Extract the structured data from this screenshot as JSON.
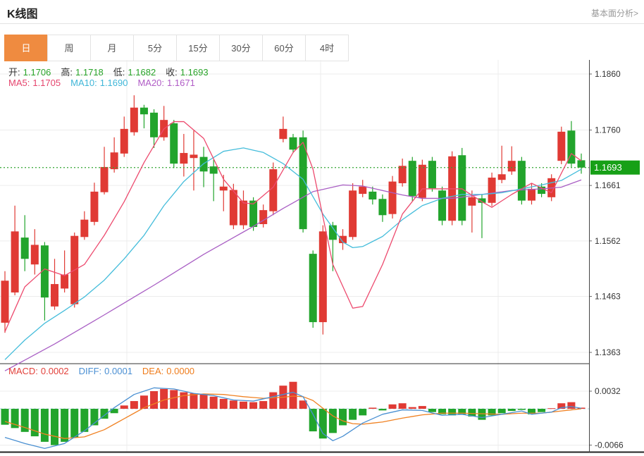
{
  "header": {
    "title": "K线图",
    "link": "基本面分析>"
  },
  "tabs": {
    "items": [
      "日",
      "周",
      "月",
      "5分",
      "15分",
      "30分",
      "60分",
      "4时"
    ],
    "active_index": 0
  },
  "ohlc": {
    "o_label": "开:",
    "o": "1.1706",
    "h_label": "高:",
    "h": "1.1718",
    "l_label": "低:",
    "l": "1.1682",
    "c_label": "收:",
    "c": "1.1693"
  },
  "ma_legend": {
    "ma5_label": "MA5:",
    "ma5": "1.1705",
    "ma10_label": "MA10:",
    "ma10": "1.1690",
    "ma20_label": "MA20:",
    "ma20": "1.1671"
  },
  "macd_legend": {
    "macd_label": "MACD:",
    "macd": "0.0002",
    "diff_label": "DIFF:",
    "diff": "0.0001",
    "dea_label": "DEA:",
    "dea": "0.0000"
  },
  "colors": {
    "up_candle": "#e03a34",
    "down_candle": "#22a42c",
    "ma5_line": "#ed4a6e",
    "ma10_line": "#45bddb",
    "ma20_line": "#a95fc4",
    "diff_line": "#4a90d2",
    "dea_line": "#f08223",
    "current_price_tag": "#17a017",
    "current_price_line": "#33a532",
    "active_tab": "#ef8b40",
    "grid": "#ececec",
    "axis": "#444444",
    "zero_dash": "#aad4e6"
  },
  "chart_data": {
    "type": "candlestick+macd",
    "title": "K线图",
    "period": "日",
    "price_axis": {
      "max": 1.186,
      "min": 1.1363,
      "ticks": [
        1.186,
        1.176,
        1.1661,
        1.1562,
        1.1463,
        1.1363
      ],
      "current_price": 1.1693
    },
    "macd_axis": {
      "ticks": [
        0.0032,
        -0.0066
      ],
      "zero": 0
    },
    "ohlc_order": "open,close,high,low",
    "candles": [
      [
        1.1416,
        1.1491,
        1.1508,
        1.1398
      ],
      [
        1.147,
        1.1579,
        1.1625,
        1.1465
      ],
      [
        1.1568,
        1.153,
        1.1608,
        1.1508
      ],
      [
        1.152,
        1.1555,
        1.1583,
        1.1502
      ],
      [
        1.1554,
        1.1461,
        1.156,
        1.142
      ],
      [
        1.1445,
        1.1485,
        1.153,
        1.1439
      ],
      [
        1.1477,
        1.1502,
        1.1545,
        1.147
      ],
      [
        1.1449,
        1.1571,
        1.1577,
        1.1443
      ],
      [
        1.1569,
        1.16,
        1.1615,
        1.1564
      ],
      [
        1.1596,
        1.165,
        1.1666,
        1.159
      ],
      [
        1.1649,
        1.1694,
        1.173,
        1.1645
      ],
      [
        1.169,
        1.172,
        1.1747,
        1.1684
      ],
      [
        1.1718,
        1.1762,
        1.1784,
        1.1712
      ],
      [
        1.1756,
        1.18,
        1.1822,
        1.175
      ],
      [
        1.18,
        1.1788,
        1.1805,
        1.1763
      ],
      [
        1.1791,
        1.1747,
        1.1797,
        1.1728
      ],
      [
        1.1747,
        1.1778,
        1.1803,
        1.1741
      ],
      [
        1.1772,
        1.17,
        1.1778,
        1.1692
      ],
      [
        1.17,
        1.1719,
        1.1753,
        1.1677
      ],
      [
        1.171,
        1.1716,
        1.1759,
        1.1652
      ],
      [
        1.1712,
        1.1686,
        1.173,
        1.1658
      ],
      [
        1.1695,
        1.1682,
        1.1707,
        1.1633
      ],
      [
        1.1652,
        1.1659,
        1.168,
        1.1615
      ],
      [
        1.159,
        1.1653,
        1.1664,
        1.1583
      ],
      [
        1.159,
        1.1634,
        1.1652,
        1.1583
      ],
      [
        1.1634,
        1.1587,
        1.164,
        1.158
      ],
      [
        1.1592,
        1.1617,
        1.1627,
        1.1586
      ],
      [
        1.1615,
        1.169,
        1.1702,
        1.1608
      ],
      [
        1.1744,
        1.1762,
        1.1784,
        1.1738
      ],
      [
        1.1747,
        1.1725,
        1.1753,
        1.1719
      ],
      [
        1.1747,
        1.1583,
        1.1759,
        1.1577
      ],
      [
        1.1539,
        1.1417,
        1.1545,
        1.1407
      ],
      [
        1.1417,
        1.1579,
        1.159,
        1.1395
      ],
      [
        1.159,
        1.1564,
        1.1596,
        1.1508
      ],
      [
        1.1558,
        1.1571,
        1.1583,
        1.1546
      ],
      [
        1.1569,
        1.1652,
        1.1665,
        1.1564
      ],
      [
        1.1646,
        1.1659,
        1.1671,
        1.164
      ],
      [
        1.165,
        1.1636,
        1.1659,
        1.1627
      ],
      [
        1.1637,
        1.1608,
        1.1645,
        1.1596
      ],
      [
        1.161,
        1.1668,
        1.1678,
        1.1602
      ],
      [
        1.1665,
        1.1696,
        1.1709,
        1.1659
      ],
      [
        1.1705,
        1.1642,
        1.1712,
        1.1633
      ],
      [
        1.1639,
        1.1698,
        1.1707,
        1.1633
      ],
      [
        1.1705,
        1.1656,
        1.1712,
        1.165
      ],
      [
        1.1652,
        1.1598,
        1.1659,
        1.159
      ],
      [
        1.1598,
        1.1713,
        1.1722,
        1.159
      ],
      [
        1.1715,
        1.1598,
        1.1728,
        1.159
      ],
      [
        1.1625,
        1.164,
        1.1652,
        1.1577
      ],
      [
        1.1638,
        1.163,
        1.1645,
        1.1567
      ],
      [
        1.163,
        1.1675,
        1.1684,
        1.1624
      ],
      [
        1.1671,
        1.1681,
        1.1732,
        1.1665
      ],
      [
        1.1686,
        1.1705,
        1.1731,
        1.168
      ],
      [
        1.1705,
        1.1634,
        1.1712,
        1.1627
      ],
      [
        1.1634,
        1.1655,
        1.1665,
        1.1627
      ],
      [
        1.1659,
        1.1646,
        1.1665,
        1.164
      ],
      [
        1.164,
        1.1674,
        1.1681,
        1.1633
      ],
      [
        1.1705,
        1.1757,
        1.1766,
        1.1699
      ],
      [
        1.1759,
        1.17,
        1.1776,
        1.1694
      ],
      [
        1.1706,
        1.1693,
        1.1718,
        1.1682
      ]
    ],
    "ma5_keypoints": [
      [
        0,
        1.14
      ],
      [
        2,
        1.148
      ],
      [
        4,
        1.1512
      ],
      [
        6,
        1.15
      ],
      [
        8,
        1.152
      ],
      [
        10,
        1.1572
      ],
      [
        12,
        1.1632
      ],
      [
        14,
        1.1702
      ],
      [
        16,
        1.1762
      ],
      [
        17,
        1.1775
      ],
      [
        18,
        1.1775
      ],
      [
        20,
        1.1745
      ],
      [
        22,
        1.1672
      ],
      [
        24,
        1.163
      ],
      [
        25,
        1.1628
      ],
      [
        27,
        1.1658
      ],
      [
        29,
        1.172
      ],
      [
        30,
        1.1738
      ],
      [
        31,
        1.169
      ],
      [
        33,
        1.152
      ],
      [
        35,
        1.1442
      ],
      [
        36,
        1.1445
      ],
      [
        38,
        1.152
      ],
      [
        40,
        1.161
      ],
      [
        42,
        1.1655
      ],
      [
        44,
        1.1655
      ],
      [
        46,
        1.1655
      ],
      [
        48,
        1.1632
      ],
      [
        49,
        1.1622
      ],
      [
        51,
        1.1645
      ],
      [
        53,
        1.1665
      ],
      [
        55,
        1.1648
      ],
      [
        57,
        1.1718
      ],
      [
        58,
        1.1705
      ]
    ],
    "ma10_keypoints": [
      [
        0,
        1.135
      ],
      [
        2,
        1.1385
      ],
      [
        4,
        1.1415
      ],
      [
        6,
        1.1438
      ],
      [
        8,
        1.1462
      ],
      [
        10,
        1.1492
      ],
      [
        12,
        1.153
      ],
      [
        14,
        1.1572
      ],
      [
        16,
        1.1625
      ],
      [
        18,
        1.1668
      ],
      [
        20,
        1.17
      ],
      [
        22,
        1.1722
      ],
      [
        24,
        1.1728
      ],
      [
        26,
        1.172
      ],
      [
        28,
        1.17
      ],
      [
        30,
        1.1672
      ],
      [
        32,
        1.161
      ],
      [
        34,
        1.156
      ],
      [
        35,
        1.155
      ],
      [
        36,
        1.1552
      ],
      [
        38,
        1.157
      ],
      [
        40,
        1.16
      ],
      [
        42,
        1.1625
      ],
      [
        44,
        1.1638
      ],
      [
        46,
        1.1645
      ],
      [
        48,
        1.1645
      ],
      [
        50,
        1.1648
      ],
      [
        52,
        1.1655
      ],
      [
        54,
        1.1662
      ],
      [
        56,
        1.167
      ],
      [
        58,
        1.169
      ]
    ],
    "ma20_keypoints": [
      [
        0,
        1.133
      ],
      [
        5,
        1.1378
      ],
      [
        10,
        1.143
      ],
      [
        15,
        1.1483
      ],
      [
        20,
        1.1538
      ],
      [
        25,
        1.1588
      ],
      [
        28,
        1.162
      ],
      [
        31,
        1.165
      ],
      [
        34,
        1.1662
      ],
      [
        36,
        1.166
      ],
      [
        38,
        1.1652
      ],
      [
        40,
        1.1644
      ],
      [
        42,
        1.1638
      ],
      [
        45,
        1.1638
      ],
      [
        48,
        1.1645
      ],
      [
        51,
        1.1652
      ],
      [
        54,
        1.1655
      ],
      [
        56,
        1.1658
      ],
      [
        58,
        1.1671
      ]
    ],
    "macd_hist": [
      -0.0029,
      -0.0035,
      -0.0042,
      -0.005,
      -0.006,
      -0.0066,
      -0.006,
      -0.0052,
      -0.0042,
      -0.003,
      -0.0018,
      -0.0008,
      0.0006,
      0.0014,
      0.0024,
      0.0032,
      0.0036,
      0.0034,
      0.003,
      0.0028,
      0.0026,
      0.0022,
      0.0018,
      0.0015,
      0.0013,
      0.0012,
      0.0014,
      0.003,
      0.0042,
      0.0049,
      0.0015,
      -0.0041,
      -0.0054,
      -0.0044,
      -0.003,
      -0.002,
      -0.0012,
      0.0002,
      -0.0003,
      0.0008,
      0.001,
      0.0003,
      0.0005,
      -0.0006,
      -0.001,
      -0.0012,
      -0.001,
      -0.0014,
      -0.002,
      -0.0012,
      -0.0008,
      -0.0004,
      -0.0002,
      -0.001,
      -0.0006,
      0.0001,
      0.001,
      0.0012,
      0.0002
    ],
    "diff_keypoints": [
      [
        0,
        -0.0052
      ],
      [
        2,
        -0.0063
      ],
      [
        4,
        -0.0072
      ],
      [
        6,
        -0.0063
      ],
      [
        8,
        -0.004
      ],
      [
        10,
        -0.0012
      ],
      [
        11,
        0.0002
      ],
      [
        13,
        0.0026
      ],
      [
        15,
        0.0038
      ],
      [
        17,
        0.0036
      ],
      [
        19,
        0.0028
      ],
      [
        21,
        0.0024
      ],
      [
        23,
        0.0016
      ],
      [
        25,
        0.0014
      ],
      [
        27,
        0.0022
      ],
      [
        29,
        0.003
      ],
      [
        30,
        0.0022
      ],
      [
        31,
        -0.001
      ],
      [
        32,
        -0.0045
      ],
      [
        33,
        -0.0058
      ],
      [
        34,
        -0.005
      ],
      [
        36,
        -0.0026
      ],
      [
        38,
        -0.001
      ],
      [
        40,
        -0.0002
      ],
      [
        42,
        -0.0003
      ],
      [
        44,
        -0.0012
      ],
      [
        46,
        -0.001
      ],
      [
        48,
        -0.0016
      ],
      [
        50,
        -0.001
      ],
      [
        52,
        -0.0004
      ],
      [
        53,
        -0.001
      ],
      [
        55,
        -0.0006
      ],
      [
        56,
        0.0002
      ],
      [
        57,
        0.0004
      ],
      [
        58,
        0.0001
      ]
    ],
    "dea_keypoints": [
      [
        0,
        -0.0023
      ],
      [
        2,
        -0.0034
      ],
      [
        4,
        -0.0046
      ],
      [
        6,
        -0.0054
      ],
      [
        8,
        -0.0051
      ],
      [
        10,
        -0.0038
      ],
      [
        12,
        -0.0018
      ],
      [
        14,
        0.0002
      ],
      [
        16,
        0.0016
      ],
      [
        18,
        0.0024
      ],
      [
        20,
        0.0027
      ],
      [
        22,
        0.0026
      ],
      [
        24,
        0.0022
      ],
      [
        26,
        0.0019
      ],
      [
        28,
        0.0021
      ],
      [
        29,
        0.0023
      ],
      [
        30,
        0.0022
      ],
      [
        31,
        0.0015
      ],
      [
        32,
        0.0001
      ],
      [
        33,
        -0.0013
      ],
      [
        34,
        -0.0022
      ],
      [
        35,
        -0.0027
      ],
      [
        36,
        -0.0028
      ],
      [
        38,
        -0.0024
      ],
      [
        40,
        -0.0017
      ],
      [
        42,
        -0.0011
      ],
      [
        44,
        -0.0008
      ],
      [
        46,
        -0.0008
      ],
      [
        48,
        -0.0009
      ],
      [
        50,
        -0.001
      ],
      [
        52,
        -0.0008
      ],
      [
        54,
        -0.0008
      ],
      [
        56,
        -0.0004
      ],
      [
        58,
        0.0
      ]
    ]
  }
}
